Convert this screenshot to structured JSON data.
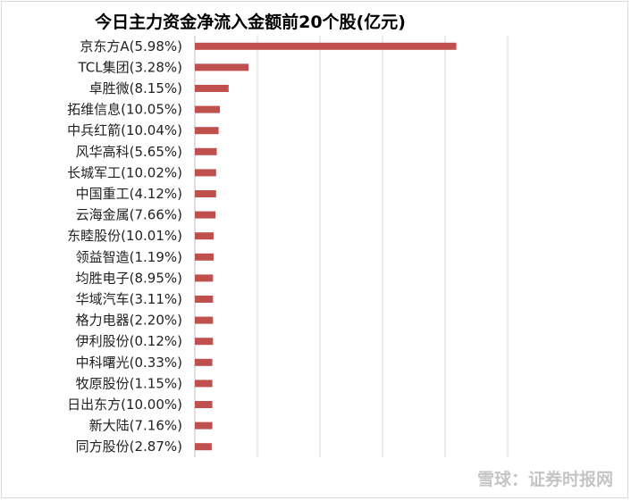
{
  "chart_data": {
    "type": "bar",
    "orientation": "horizontal",
    "title": "今日主力资金净流入金额前20个股(亿元)",
    "categories": [
      "京东方A(5.98%)",
      "TCL集团(3.28%)",
      "卓胜微(8.15%)",
      "拓维信息(10.05%)",
      "中兵红箭(10.04%)",
      "风华高科(5.65%)",
      "长城军工(10.02%)",
      "中国重工(4.12%)",
      "云海金属(7.66%)",
      "东睦股份(10.01%)",
      "领益智造(1.19%)",
      "均胜电子(8.95%)",
      "华域汽车(3.11%)",
      "格力电器(2.20%)",
      "伊利股份(0.12%)",
      "中科曙光(0.33%)",
      "牧原股份(1.15%)",
      "日出东方(10.00%)",
      "新大陆(7.16%)",
      "同方股份(2.87%)"
    ],
    "values": [
      20.9,
      4.3,
      2.7,
      2.0,
      1.9,
      1.75,
      1.7,
      1.7,
      1.65,
      1.5,
      1.5,
      1.45,
      1.45,
      1.45,
      1.45,
      1.4,
      1.4,
      1.4,
      1.4,
      1.35
    ],
    "xlim": [
      0,
      25
    ],
    "ticks": [
      "0.00",
      "5.00",
      "10.00",
      "15.00",
      "20.00",
      "25.00"
    ],
    "grid": true,
    "legend": "none",
    "bar_color": "#c0504d"
  },
  "watermark": "雪球：证券时报网"
}
